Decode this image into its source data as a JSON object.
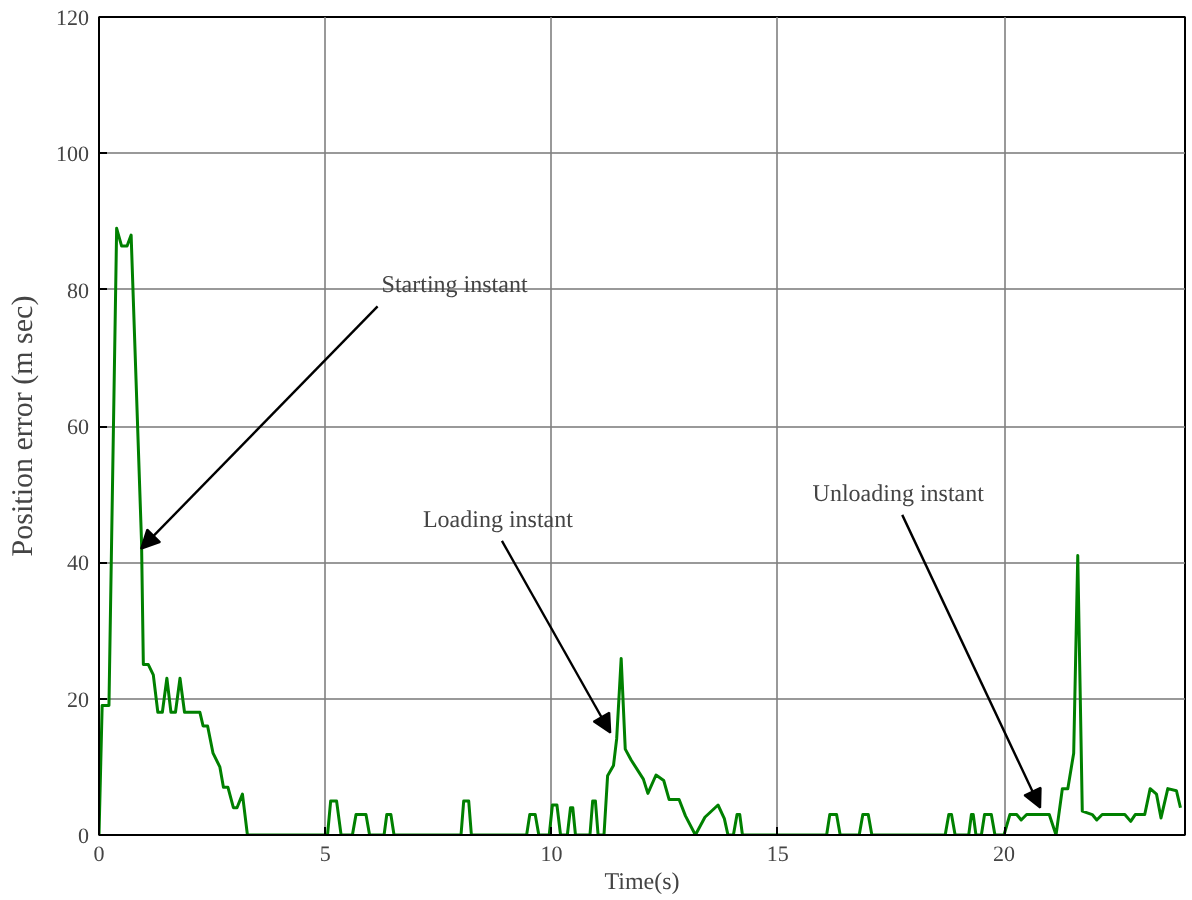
{
  "chart_data": {
    "type": "line",
    "xlabel": "Time(s)",
    "ylabel": "Position error (m sec)",
    "xlim": [
      0,
      24
    ],
    "ylim": [
      0,
      120
    ],
    "xticks": [
      0,
      5,
      10,
      15,
      20
    ],
    "yticks": [
      0,
      20,
      40,
      60,
      80,
      100,
      120
    ],
    "grid": true,
    "series": [
      {
        "color": "#008000",
        "x": [
          0,
          0.07,
          0.22,
          0.39,
          0.5,
          0.62,
          0.71,
          0.94,
          0.98,
          1.09,
          1.2,
          1.3,
          1.4,
          1.5,
          1.59,
          1.69,
          1.79,
          1.89,
          2.23,
          2.3,
          2.4,
          2.52,
          2.67,
          2.75,
          2.85,
          2.97,
          3.05,
          3.17,
          3.28,
          5.05,
          5.12,
          5.25,
          5.35,
          5.6,
          5.68,
          5.9,
          5.98,
          6.3,
          6.36,
          6.45,
          6.52,
          8.0,
          8.06,
          8.17,
          8.23,
          9.45,
          9.52,
          9.64,
          9.72,
          9.95,
          10.02,
          10.12,
          10.2,
          10.35,
          10.42,
          10.47,
          10.53,
          10.85,
          10.91,
          10.97,
          11.03,
          11.16,
          11.24,
          11.37,
          11.44,
          11.54,
          11.63,
          11.76,
          12.03,
          12.13,
          12.31,
          12.48,
          12.6,
          12.82,
          12.96,
          13.18,
          13.39,
          13.68,
          13.82,
          13.9,
          14.02,
          14.1,
          14.16,
          14.22,
          16.08,
          16.15,
          16.3,
          16.38,
          16.8,
          16.88,
          17.0,
          17.08,
          18.7,
          18.78,
          18.84,
          18.92,
          19.22,
          19.28,
          19.32,
          19.38,
          19.5,
          19.57,
          19.72,
          19.8,
          20.0,
          20.13,
          20.28,
          20.38,
          20.5,
          20.93,
          21.0,
          21.15,
          21.29,
          21.41,
          21.54,
          21.63,
          21.73,
          21.95,
          22.05,
          22.17,
          22.67,
          22.8,
          22.9,
          23.11,
          23.23,
          23.37,
          23.47,
          23.62,
          23.81,
          23.9
        ],
        "values": [
          0,
          19,
          19,
          89,
          86.4,
          86.4,
          88,
          43,
          25,
          25,
          23.5,
          18,
          18,
          23,
          18,
          18,
          23,
          18,
          18,
          16,
          16,
          12,
          10,
          7,
          7,
          4,
          4,
          6,
          0,
          0,
          5,
          5,
          0,
          0,
          3,
          3,
          0,
          0,
          3,
          3,
          0,
          0,
          5,
          5,
          0,
          0,
          3,
          3,
          0,
          0,
          4.4,
          4.4,
          0,
          0,
          4,
          4,
          0,
          0,
          5,
          5,
          0,
          0,
          8.7,
          10.2,
          14.1,
          25.9,
          12.6,
          11,
          8.2,
          6.1,
          8.8,
          8,
          5.2,
          5.2,
          2.8,
          0,
          2.6,
          4.4,
          2.4,
          0,
          0,
          3,
          3,
          0,
          0,
          3,
          3,
          0,
          0,
          3,
          3,
          0,
          0,
          3,
          3,
          0,
          0,
          3,
          3,
          0,
          0,
          3,
          3,
          0,
          0,
          3,
          3,
          2.2,
          3,
          3,
          3,
          0,
          6.8,
          6.8,
          12,
          41,
          3.5,
          3,
          2.2,
          3,
          3,
          2,
          3,
          3,
          6.8,
          6,
          2.5,
          6.8,
          6.5,
          4
        ]
      }
    ],
    "annotations": [
      {
        "text": "Starting instant",
        "x": 0.93,
        "y": 42
      },
      {
        "text": "Loading instant",
        "x": 11.3,
        "y": 15
      },
      {
        "text": "Unloading instant",
        "x": 20.8,
        "y": 4
      }
    ]
  }
}
